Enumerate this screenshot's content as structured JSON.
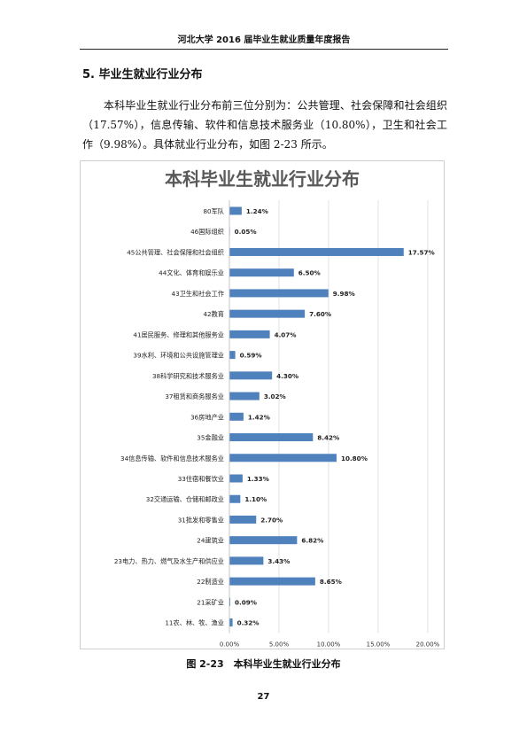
{
  "header": {
    "title": "河北大学 2016 届毕业生就业质量年度报告"
  },
  "section": {
    "title": "5. 毕业生就业行业分布"
  },
  "body": {
    "paragraph": "本科毕业生就业行业分布前三位分别为：公共管理、社会保障和社会组织（17.57%），信息传输、软件和信息技术服务业（10.80%），卫生和社会工作（9.98%）。具体就业行业分布，如图 2-23 所示。"
  },
  "figure": {
    "caption": "图 2-23　本科毕业生就业行业分布"
  },
  "footer": {
    "page_number": "27"
  },
  "chart_data": {
    "type": "bar",
    "orientation": "horizontal",
    "title": "本科毕业生就业行业分布",
    "xlabel": "",
    "ylabel": "",
    "xlim": [
      0,
      20
    ],
    "x_ticks": [
      "0.00%",
      "5.00%",
      "10.00%",
      "15.00%",
      "20.00%"
    ],
    "grid": true,
    "bar_color": "#4f81bd",
    "categories": [
      "80军队",
      "46国际组织",
      "45公共管理、社会保障和社会组织",
      "44文化、体育和娱乐业",
      "43卫生和社会工作",
      "42教育",
      "41居民服务、修理和其他服务业",
      "39水利、环境和公共设施管理业",
      "38科学研究和技术服务业",
      "37租赁和商务服务业",
      "36房地产业",
      "35金融业",
      "34信息传输、软件和信息技术服务业",
      "33住宿和餐饮业",
      "32交通运输、仓储和邮政业",
      "31批发和零售业",
      "24建筑业",
      "23电力、热力、燃气及水生产和供应业",
      "22制造业",
      "21采矿业",
      "11农、林、牧、渔业"
    ],
    "values": [
      1.24,
      0.05,
      17.57,
      6.5,
      9.98,
      7.6,
      4.07,
      0.59,
      4.3,
      3.02,
      1.42,
      8.42,
      10.8,
      1.33,
      1.1,
      2.7,
      6.82,
      3.43,
      8.65,
      0.09,
      0.32
    ],
    "labels": [
      "1.24%",
      "0.05%",
      "17.57%",
      "6.50%",
      "9.98%",
      "7.60%",
      "4.07%",
      "0.59%",
      "4.30%",
      "3.02%",
      "1.42%",
      "8.42%",
      "10.80%",
      "1.33%",
      "1.10%",
      "2.70%",
      "6.82%",
      "3.43%",
      "8.65%",
      "0.09%",
      "0.32%"
    ]
  }
}
